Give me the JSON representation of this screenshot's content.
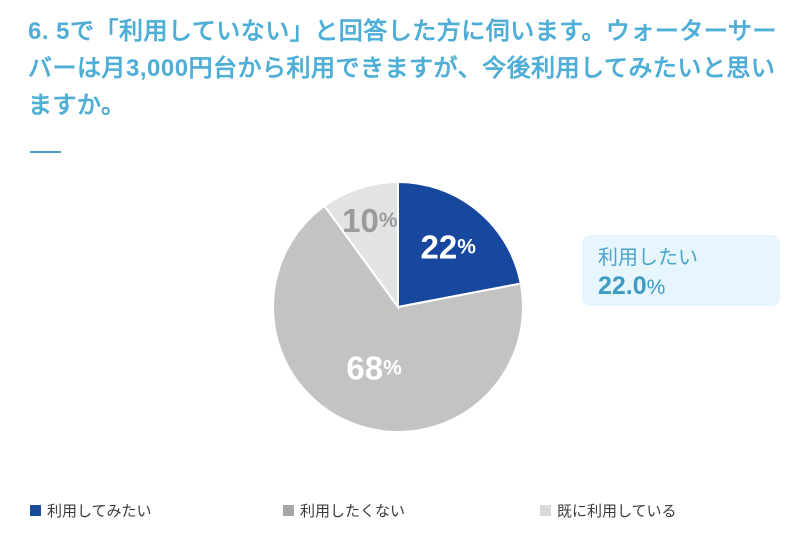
{
  "colors": {
    "background": "#ffffff",
    "title_text": "#4faed6",
    "divider": "#4e9dc0",
    "legend_text": "#3b3b3b",
    "callout_bg": "#e7f6fc",
    "callout_text": "#4aa4cc",
    "callout_value": "#3d9bc4"
  },
  "header": {
    "title": "6. 5で「利用していない」と回答した方に伺います。ウォーターサーバーは月3,000円台から利用できますが、今後利用してみたいと思いますか。"
  },
  "callout": {
    "label": "利用したい",
    "value": "22.0",
    "unit": "%"
  },
  "chart_data": {
    "type": "pie",
    "title": "",
    "start_angle_deg": 0,
    "direction": "clockwise",
    "total": 100,
    "legend_position": "bottom",
    "slices": [
      {
        "label": "利用してみたい",
        "value": 22,
        "display": "22",
        "unit": "%",
        "color": "#17489e",
        "label_color": "#ffffff",
        "label_r": 0.63
      },
      {
        "label": "利用したくない",
        "value": 68,
        "display": "68",
        "unit": "%",
        "color": "#c3c3c4",
        "label_color": "#ffffff",
        "label_r": 0.52
      },
      {
        "label": "既に利用している",
        "value": 10,
        "display": "10",
        "unit": "%",
        "color": "#e3e3e5",
        "label_color": "#9b9b9b",
        "label_r": 0.73
      }
    ],
    "legend": [
      {
        "label": "利用してみたい",
        "color": "#1b4c9b"
      },
      {
        "label": "利用したくない",
        "color": "#a6a6a6"
      },
      {
        "label": "既に利用している",
        "color": "#d9d9d9"
      }
    ]
  }
}
